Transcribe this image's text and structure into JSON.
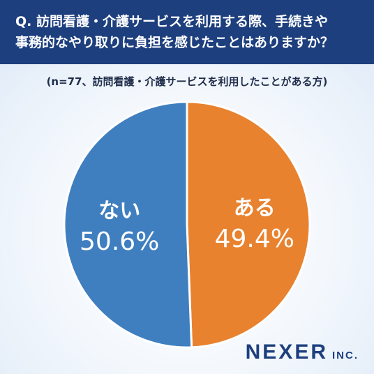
{
  "title": {
    "line1": "Q. 訪問看護・介護サービスを利用する際、手続きや",
    "line2": "事務的なやり取りに負担を感じたことはありますか？"
  },
  "subtitle": "(n=77、訪問看護・介護サービスを利用したことがある方)",
  "chart_data": {
    "type": "pie",
    "slices": [
      {
        "label": "ある",
        "value": 49.4,
        "value_label": "49.4%",
        "color": "#e8822f"
      },
      {
        "label": "ない",
        "value": 50.6,
        "value_label": "50.6%",
        "color": "#3f7fc0"
      }
    ]
  },
  "logo": {
    "main": "NEXER",
    "suffix": "INC."
  }
}
